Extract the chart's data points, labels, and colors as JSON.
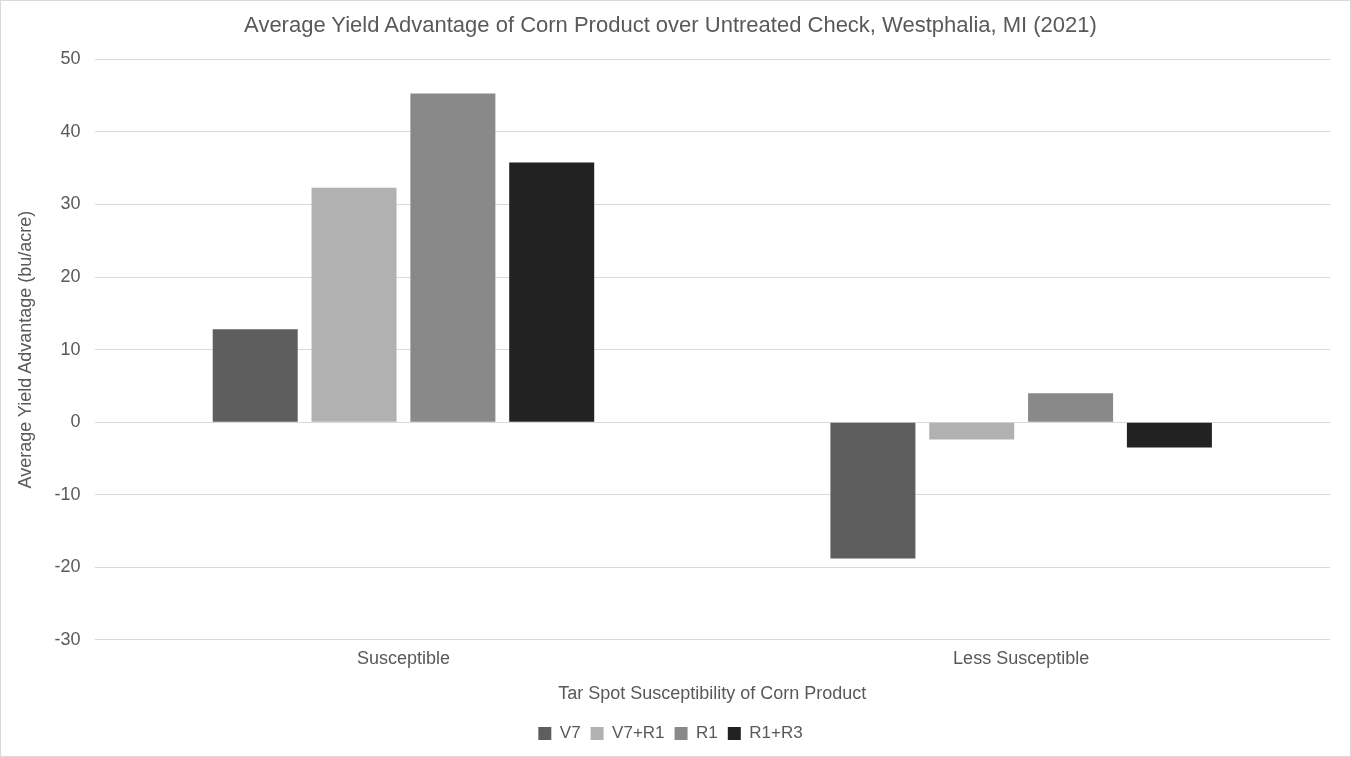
{
  "chart_data": {
    "type": "bar",
    "title": "Average Yield Advantage of Corn Product over Untreated Check, Westphalia, MI (2021)",
    "xlabel": "Tar Spot Susceptibility of Corn Product",
    "ylabel": "Average Yield Advantage (bu/acre)",
    "categories": [
      "Susceptible",
      "Less Susceptible"
    ],
    "series": [
      {
        "name": "V7",
        "color": "#5e5e5e",
        "values": [
          12.8,
          -18.8
        ]
      },
      {
        "name": "V7+R1",
        "color": "#b1b1b1",
        "values": [
          32.3,
          -2.4
        ]
      },
      {
        "name": "R1",
        "color": "#898989",
        "values": [
          45.3,
          4.0
        ]
      },
      {
        "name": "R1+R3",
        "color": "#222222",
        "values": [
          35.8,
          -3.5
        ]
      }
    ],
    "ylim": [
      -30,
      50
    ],
    "yticks": [
      -30,
      -20,
      -10,
      0,
      10,
      20,
      30,
      40,
      50
    ],
    "grid": "y",
    "legend": "bottom"
  }
}
